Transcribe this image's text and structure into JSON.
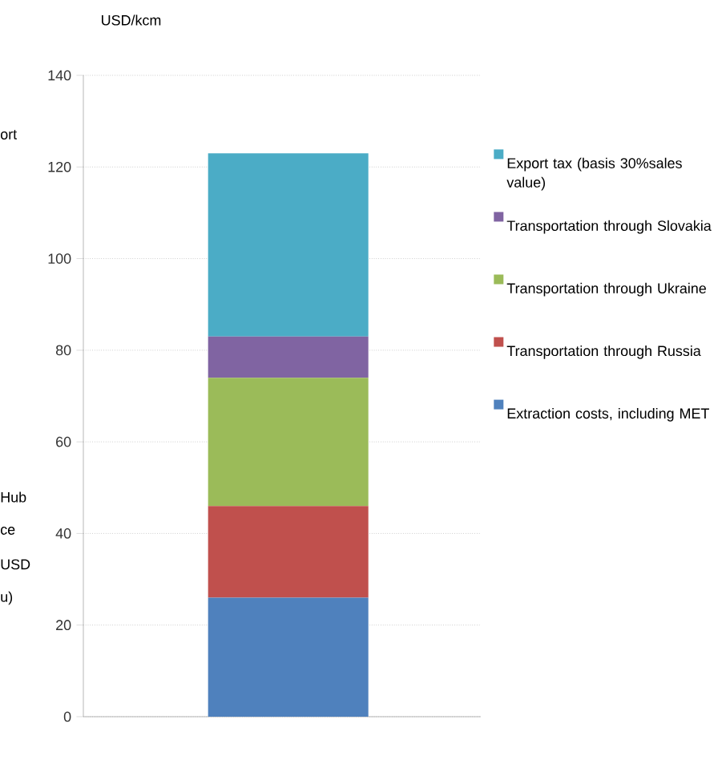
{
  "chart_data": {
    "type": "bar",
    "stacked": true,
    "ylabel": "USD/kcm",
    "categories": [
      null
    ],
    "series": [
      {
        "name": "Extraction costs, including MET",
        "color": "#4f81bd",
        "values": [
          26
        ]
      },
      {
        "name": "Transportation through Russia",
        "color": "#c0504d",
        "values": [
          20
        ]
      },
      {
        "name": "Transportation through Ukraine",
        "color": "#9bbb59",
        "values": [
          28
        ]
      },
      {
        "name": "Transportation through Slovakia",
        "color": "#8064a2",
        "values": [
          9
        ]
      },
      {
        "name": "Export tax (basis 30%sales value)",
        "color": "#4bacc6",
        "values": [
          40
        ]
      }
    ],
    "ylim": [
      0,
      140
    ],
    "yticks": [
      0,
      20,
      40,
      60,
      80,
      100,
      120,
      140
    ],
    "grid": "y",
    "legend": "right",
    "annotations": [
      "ort",
      "Hub",
      "ce",
      "USD",
      "u)"
    ]
  }
}
